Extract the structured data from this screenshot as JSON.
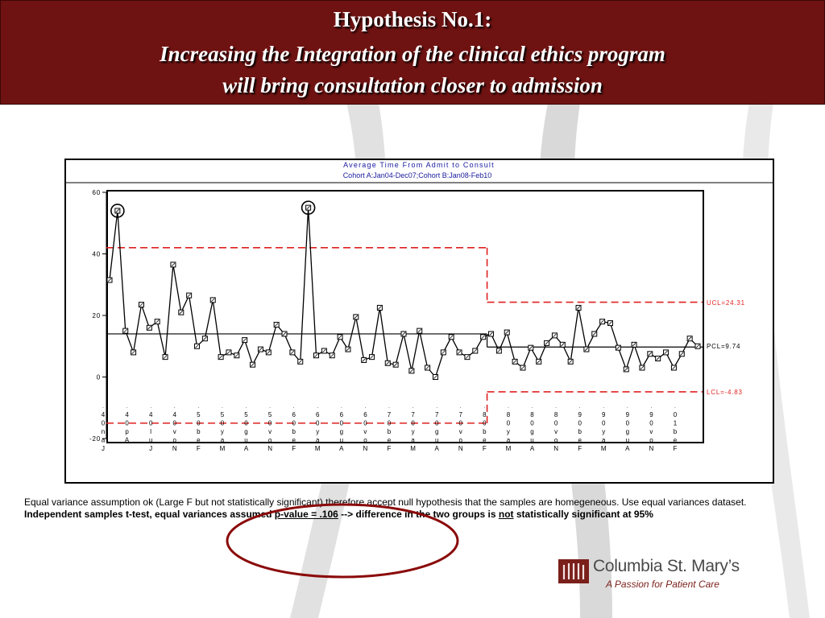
{
  "header": {
    "title_line1": "Hypothesis No.1:",
    "title_line2": "Increasing the Integration of the clinical ethics program",
    "title_line3": "will bring consultation closer to admission"
  },
  "chart_data": {
    "type": "line",
    "title": "Average Time From Admit to Consult",
    "subtitle": "Cohort A:Jan04-Dec07;Cohort B:Jan08-Feb10",
    "ylim": [
      -20,
      60
    ],
    "yticks": [
      "60",
      "40",
      "20",
      "0",
      "-20"
    ],
    "split_after_index": 47,
    "series": [
      {
        "name": "Average Time From Admit to Consult",
        "values": [
          31.5,
          54,
          15,
          8,
          23.5,
          16,
          18,
          6.5,
          36.5,
          21,
          26.5,
          10,
          12.5,
          25,
          6.5,
          8,
          7,
          12,
          4,
          9,
          8,
          17,
          14,
          8,
          5,
          55,
          7,
          8.5,
          7,
          13,
          9,
          19.5,
          5.5,
          6.5,
          22.5,
          4.5,
          4,
          14,
          2,
          15,
          3,
          0,
          8,
          13,
          8,
          6.5,
          8.5,
          13,
          14,
          8.5,
          14.5,
          5,
          3,
          9.5,
          5,
          11,
          13.5,
          10.5,
          5,
          22.5,
          9,
          14,
          18,
          17.5,
          9.5,
          2.5,
          10.5,
          3,
          7.5,
          6,
          8,
          3,
          7.5,
          12.5,
          10
        ]
      }
    ],
    "circled_indices": [
      1,
      25
    ],
    "centerline_a": 14,
    "ucl_a": 42,
    "lcl_a": -15,
    "labels": {
      "ucl": "UCL=24.31",
      "pcl": "PCL=9.74",
      "lcl": "LCL=-4.83"
    },
    "xtick_labels": [
      [
        "4",
        "0",
        "n",
        "a",
        "J"
      ],
      [
        "4",
        "0",
        "p",
        "A"
      ],
      [
        "4",
        "0",
        "l",
        "u",
        "J"
      ],
      [
        "4",
        "0",
        "v",
        "o",
        "N"
      ],
      [
        "5",
        "0",
        "b",
        "e",
        "F"
      ],
      [
        "5",
        "0",
        "y",
        "a",
        "M"
      ],
      [
        "5",
        "0",
        "g",
        "u",
        "A"
      ],
      [
        "5",
        "0",
        "v",
        "o",
        "N"
      ],
      [
        "6",
        "0",
        "b",
        "e",
        "F"
      ],
      [
        "6",
        "0",
        "y",
        "a",
        "M"
      ],
      [
        "6",
        "0",
        "g",
        "u",
        "A"
      ],
      [
        "6",
        "0",
        "v",
        "o",
        "N"
      ],
      [
        "7",
        "0",
        "b",
        "e",
        "F"
      ],
      [
        "7",
        "0",
        "y",
        "a",
        "M"
      ],
      [
        "7",
        "0",
        "g",
        "u",
        "A"
      ],
      [
        "7",
        "0",
        "v",
        "o",
        "N"
      ],
      [
        "8",
        "0",
        "b",
        "e",
        "F"
      ],
      [
        "8",
        "0",
        "y",
        "a",
        "M"
      ],
      [
        "8",
        "0",
        "g",
        "u",
        "A"
      ],
      [
        "8",
        "0",
        "v",
        "o",
        "N"
      ],
      [
        "9",
        "0",
        "b",
        "e",
        "F"
      ],
      [
        "9",
        "0",
        "y",
        "a",
        "M"
      ],
      [
        "9",
        "0",
        "g",
        "u",
        "A"
      ],
      [
        "9",
        "0",
        "v",
        "o",
        "N"
      ],
      [
        "0",
        "1",
        "b",
        "e",
        "F"
      ]
    ]
  },
  "note": {
    "line1": "Equal variance assumption ok (Large F but not statistically significant) therefore accept null hypothesis that the samples are homegeneous. Use equal variances dataset.",
    "line2_a": "Independent samples t-test, equal variances assumed ",
    "line2_pvalue": "p-value = .106",
    "line2_b": " --> difference in the two groups is ",
    "line2_not": "not",
    "line2_c": " statistically significant at 95%"
  },
  "logo": {
    "name": "Columbia St. Mary’s",
    "tagline": "A Passion for Patient Care"
  },
  "colors": {
    "header_bg": "#6f1312",
    "control_red": "#e02020",
    "circle_red": "#8b0a0a",
    "logo_red": "#7a1f1a"
  }
}
